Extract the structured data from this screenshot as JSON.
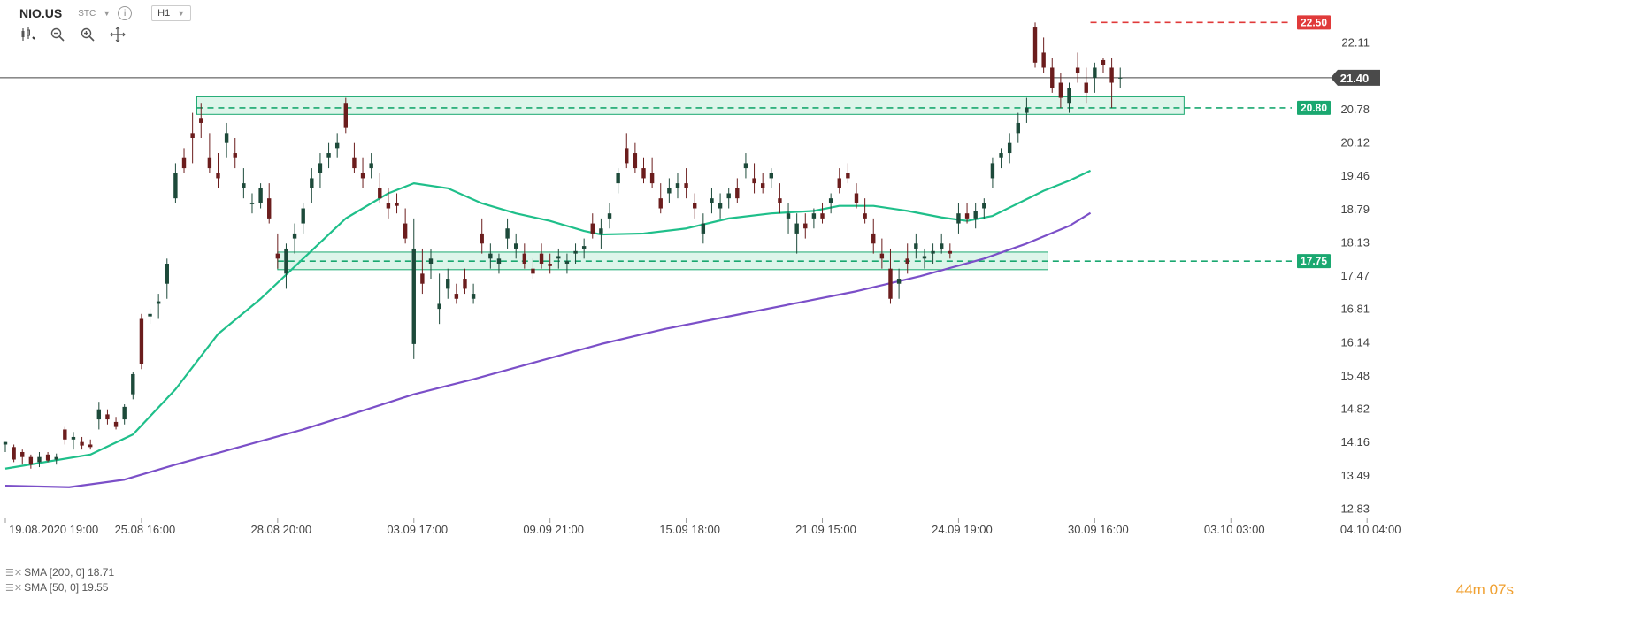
{
  "header": {
    "symbol": "NIO.US",
    "instrument_type": "STC",
    "timeframe": "H1"
  },
  "toolbar": {
    "tools": [
      "candlestick-icon",
      "zoom-out-icon",
      "zoom-in-icon",
      "move-icon"
    ]
  },
  "legend": [
    {
      "label": "SMA [200, 0] 18.71",
      "color": "#7b4fc8"
    },
    {
      "label": "SMA [50, 0] 19.55",
      "color": "#1fbf8a"
    }
  ],
  "timer": {
    "minutes": "44",
    "m": "m",
    "seconds": "07",
    "s": "s"
  },
  "colors": {
    "up": "#1d4a3a",
    "down": "#6b1d1d",
    "sma50": "#1fbf8a",
    "sma200": "#7b4fc8",
    "resistance": "#e03a3a",
    "support": "#1aa870",
    "zone_fill": "#d7f3e6",
    "last": "#444444"
  },
  "chart_data": {
    "type": "candlestick",
    "y_ticks": [
      "22.11",
      "20.78",
      "20.12",
      "19.46",
      "18.79",
      "18.13",
      "17.47",
      "16.81",
      "16.14",
      "15.48",
      "14.82",
      "14.16",
      "13.49",
      "12.83"
    ],
    "y_tick_values": [
      22.11,
      20.78,
      20.12,
      19.46,
      18.79,
      18.13,
      17.47,
      16.81,
      16.14,
      15.48,
      14.82,
      14.16,
      13.49,
      12.83
    ],
    "ylim": [
      12.7,
      22.7
    ],
    "x_ticks": [
      "19.08.2020 19:00",
      "25.08 16:00",
      "28.08 20:00",
      "03.09 17:00",
      "09.09 21:00",
      "15.09 18:00",
      "21.09 15:00",
      "24.09 19:00",
      "30.09 16:00",
      "03.10 03:00",
      "04.10 04:00"
    ],
    "x_tick_index": [
      0,
      32,
      64,
      96,
      128,
      160,
      192,
      224,
      256,
      288,
      320
    ],
    "bar_count": 330,
    "levels": [
      {
        "label": "22.50",
        "value": 22.5,
        "color": "#e03a3a",
        "from_index": 255
      },
      {
        "label": "20.80",
        "value": 20.8,
        "color": "#1aa870",
        "from_index": 45
      },
      {
        "label": "17.75",
        "value": 17.75,
        "color": "#1aa870",
        "from_index": 64
      }
    ],
    "zones": [
      {
        "from_index": 45,
        "to_index": 277,
        "low": 20.67,
        "high": 21.02
      },
      {
        "from_index": 64,
        "to_index": 245,
        "low": 17.58,
        "high": 17.93
      }
    ],
    "last_price": {
      "label": "21.40",
      "value": 21.4
    },
    "candles": [
      [
        0,
        14.1,
        14.15,
        13.95,
        14.15
      ],
      [
        2,
        14.05,
        14.1,
        13.75,
        13.8
      ],
      [
        4,
        13.95,
        14.0,
        13.7,
        13.85
      ],
      [
        6,
        13.85,
        13.9,
        13.62,
        13.7
      ],
      [
        8,
        13.75,
        13.95,
        13.65,
        13.85
      ],
      [
        10,
        13.9,
        13.95,
        13.75,
        13.78
      ],
      [
        12,
        13.8,
        13.92,
        13.7,
        13.85
      ],
      [
        14,
        14.4,
        14.45,
        14.1,
        14.2
      ],
      [
        16,
        14.2,
        14.35,
        14.0,
        14.25
      ],
      [
        18,
        14.15,
        14.25,
        14.0,
        14.08
      ],
      [
        20,
        14.1,
        14.2,
        14.0,
        14.05
      ],
      [
        22,
        14.6,
        14.95,
        14.4,
        14.8
      ],
      [
        24,
        14.7,
        14.8,
        14.5,
        14.6
      ],
      [
        26,
        14.55,
        14.65,
        14.4,
        14.45
      ],
      [
        28,
        14.6,
        14.9,
        14.5,
        14.85
      ],
      [
        30,
        15.1,
        15.55,
        15.0,
        15.5
      ],
      [
        32,
        16.6,
        16.7,
        15.6,
        15.7
      ],
      [
        34,
        16.65,
        16.8,
        16.5,
        16.7
      ],
      [
        36,
        16.9,
        17.1,
        16.6,
        16.95
      ],
      [
        38,
        17.3,
        17.8,
        17.0,
        17.7
      ],
      [
        40,
        19.0,
        19.7,
        18.9,
        19.5
      ],
      [
        42,
        19.8,
        20.0,
        19.5,
        19.6
      ],
      [
        44,
        20.3,
        20.7,
        19.7,
        20.2
      ],
      [
        46,
        20.6,
        20.9,
        20.2,
        20.5
      ],
      [
        48,
        19.8,
        20.3,
        19.5,
        19.6
      ],
      [
        50,
        19.5,
        19.9,
        19.2,
        19.4
      ],
      [
        52,
        20.1,
        20.5,
        19.8,
        20.3
      ],
      [
        54,
        19.9,
        20.2,
        19.6,
        19.8
      ],
      [
        56,
        19.2,
        19.6,
        19.0,
        19.3
      ],
      [
        58,
        18.9,
        19.1,
        18.7,
        18.9
      ],
      [
        60,
        18.9,
        19.3,
        18.8,
        19.2
      ],
      [
        62,
        19.0,
        19.3,
        18.5,
        18.6
      ],
      [
        64,
        17.9,
        18.3,
        17.6,
        17.8
      ],
      [
        66,
        17.5,
        18.1,
        17.2,
        18.0
      ],
      [
        68,
        18.2,
        18.5,
        17.9,
        18.3
      ],
      [
        70,
        18.5,
        18.9,
        18.3,
        18.8
      ],
      [
        72,
        19.2,
        19.6,
        18.9,
        19.4
      ],
      [
        74,
        19.5,
        19.9,
        19.2,
        19.7
      ],
      [
        76,
        19.8,
        20.1,
        19.6,
        19.9
      ],
      [
        78,
        20.0,
        20.3,
        19.8,
        20.1
      ],
      [
        80,
        20.9,
        21.0,
        20.3,
        20.4
      ],
      [
        82,
        19.8,
        20.1,
        19.5,
        19.6
      ],
      [
        84,
        19.5,
        19.8,
        19.2,
        19.4
      ],
      [
        86,
        19.6,
        19.9,
        19.4,
        19.7
      ],
      [
        88,
        19.2,
        19.5,
        18.9,
        19.0
      ],
      [
        90,
        18.9,
        19.2,
        18.6,
        18.8
      ],
      [
        92,
        18.9,
        19.1,
        18.7,
        18.85
      ],
      [
        94,
        18.5,
        18.8,
        18.1,
        18.2
      ],
      [
        96,
        16.1,
        18.6,
        15.8,
        18.0
      ],
      [
        98,
        17.5,
        18.0,
        17.1,
        17.3
      ],
      [
        100,
        17.7,
        18.0,
        17.4,
        17.8
      ],
      [
        102,
        16.8,
        17.5,
        16.5,
        16.9
      ],
      [
        104,
        17.2,
        17.6,
        17.0,
        17.4
      ],
      [
        106,
        17.1,
        17.3,
        16.9,
        17.0
      ],
      [
        108,
        17.4,
        17.6,
        17.1,
        17.2
      ],
      [
        110,
        17.0,
        17.3,
        16.9,
        17.1
      ],
      [
        112,
        18.3,
        18.6,
        17.9,
        18.1
      ],
      [
        114,
        17.8,
        18.1,
        17.6,
        17.9
      ],
      [
        116,
        17.7,
        17.9,
        17.5,
        17.8
      ],
      [
        118,
        18.2,
        18.6,
        18.0,
        18.4
      ],
      [
        120,
        18.0,
        18.3,
        17.8,
        18.1
      ],
      [
        122,
        17.9,
        18.1,
        17.6,
        17.7
      ],
      [
        124,
        17.6,
        17.8,
        17.4,
        17.5
      ],
      [
        126,
        17.9,
        18.1,
        17.6,
        17.7
      ],
      [
        128,
        17.7,
        17.9,
        17.5,
        17.65
      ],
      [
        130,
        17.8,
        18.0,
        17.6,
        17.85
      ],
      [
        132,
        17.7,
        17.9,
        17.5,
        17.75
      ],
      [
        134,
        17.9,
        18.1,
        17.7,
        17.95
      ],
      [
        136,
        18.0,
        18.2,
        17.8,
        18.05
      ],
      [
        138,
        18.5,
        18.7,
        18.2,
        18.3
      ],
      [
        140,
        18.3,
        18.6,
        18.0,
        18.4
      ],
      [
        142,
        18.6,
        18.9,
        18.4,
        18.7
      ],
      [
        144,
        19.3,
        19.6,
        19.1,
        19.5
      ],
      [
        146,
        20.0,
        20.3,
        19.6,
        19.7
      ],
      [
        148,
        19.9,
        20.1,
        19.5,
        19.6
      ],
      [
        150,
        19.6,
        19.8,
        19.3,
        19.4
      ],
      [
        152,
        19.5,
        19.8,
        19.2,
        19.3
      ],
      [
        154,
        19.0,
        19.3,
        18.7,
        18.8
      ],
      [
        156,
        19.1,
        19.4,
        18.9,
        19.2
      ],
      [
        158,
        19.2,
        19.5,
        19.0,
        19.3
      ],
      [
        160,
        19.3,
        19.6,
        19.0,
        19.2
      ],
      [
        162,
        18.9,
        19.1,
        18.6,
        18.8
      ],
      [
        164,
        18.3,
        18.7,
        18.1,
        18.5
      ],
      [
        166,
        18.9,
        19.2,
        18.7,
        19.0
      ],
      [
        168,
        18.8,
        19.1,
        18.6,
        18.9
      ],
      [
        170,
        19.0,
        19.2,
        18.8,
        19.1
      ],
      [
        172,
        19.2,
        19.4,
        18.9,
        19.0
      ],
      [
        174,
        19.6,
        19.9,
        19.4,
        19.7
      ],
      [
        176,
        19.4,
        19.7,
        19.1,
        19.3
      ],
      [
        178,
        19.3,
        19.5,
        19.1,
        19.2
      ],
      [
        180,
        19.4,
        19.6,
        19.2,
        19.5
      ],
      [
        182,
        19.0,
        19.3,
        18.7,
        18.9
      ],
      [
        184,
        18.6,
        18.9,
        18.3,
        18.7
      ],
      [
        186,
        18.3,
        18.7,
        17.9,
        18.5
      ],
      [
        188,
        18.5,
        18.7,
        18.2,
        18.4
      ],
      [
        190,
        18.6,
        18.8,
        18.4,
        18.7
      ],
      [
        192,
        18.7,
        18.9,
        18.5,
        18.6
      ],
      [
        194,
        18.9,
        19.1,
        18.7,
        19.0
      ],
      [
        196,
        19.4,
        19.6,
        19.1,
        19.2
      ],
      [
        198,
        19.5,
        19.7,
        19.3,
        19.4
      ],
      [
        200,
        19.1,
        19.3,
        18.8,
        18.9
      ],
      [
        202,
        18.7,
        19.0,
        18.5,
        18.6
      ],
      [
        204,
        18.3,
        18.6,
        17.9,
        18.1
      ],
      [
        206,
        17.9,
        18.2,
        17.6,
        17.8
      ],
      [
        208,
        17.6,
        18.0,
        16.9,
        17.0
      ],
      [
        210,
        17.3,
        17.6,
        17.0,
        17.4
      ],
      [
        212,
        17.8,
        18.1,
        17.5,
        17.7
      ],
      [
        214,
        18.0,
        18.3,
        17.8,
        18.1
      ],
      [
        216,
        17.8,
        18.0,
        17.6,
        17.85
      ],
      [
        218,
        17.9,
        18.1,
        17.7,
        17.95
      ],
      [
        220,
        18.0,
        18.3,
        17.9,
        18.1
      ],
      [
        222,
        17.95,
        18.1,
        17.8,
        17.9
      ],
      [
        224,
        18.5,
        18.9,
        18.3,
        18.7
      ],
      [
        226,
        18.7,
        18.9,
        18.5,
        18.6
      ],
      [
        228,
        18.6,
        18.9,
        18.4,
        18.75
      ],
      [
        230,
        18.8,
        19.0,
        18.6,
        18.9
      ],
      [
        232,
        19.4,
        19.8,
        19.2,
        19.7
      ],
      [
        234,
        19.8,
        20.0,
        19.6,
        19.9
      ],
      [
        236,
        19.9,
        20.3,
        19.7,
        20.1
      ],
      [
        238,
        20.3,
        20.7,
        20.1,
        20.5
      ],
      [
        240,
        20.7,
        21.0,
        20.5,
        20.8
      ],
      [
        242,
        22.4,
        22.5,
        21.6,
        21.7
      ],
      [
        244,
        21.9,
        22.2,
        21.5,
        21.6
      ],
      [
        246,
        21.6,
        21.8,
        21.1,
        21.2
      ],
      [
        248,
        21.3,
        21.5,
        20.8,
        21.0
      ],
      [
        250,
        20.9,
        21.3,
        20.7,
        21.2
      ],
      [
        252,
        21.6,
        21.9,
        21.3,
        21.5
      ],
      [
        254,
        21.3,
        21.6,
        20.9,
        21.1
      ],
      [
        256,
        21.4,
        21.7,
        21.1,
        21.6
      ],
      [
        258,
        21.75,
        21.8,
        21.5,
        21.65
      ],
      [
        260,
        21.6,
        21.8,
        20.8,
        21.3
      ],
      [
        262,
        21.4,
        21.6,
        21.2,
        21.4
      ]
    ],
    "sma50": [
      [
        0,
        13.62
      ],
      [
        20,
        13.9
      ],
      [
        30,
        14.3
      ],
      [
        40,
        15.2
      ],
      [
        50,
        16.3
      ],
      [
        60,
        17.0
      ],
      [
        70,
        17.8
      ],
      [
        80,
        18.6
      ],
      [
        90,
        19.1
      ],
      [
        96,
        19.3
      ],
      [
        104,
        19.2
      ],
      [
        112,
        18.9
      ],
      [
        120,
        18.7
      ],
      [
        128,
        18.55
      ],
      [
        136,
        18.35
      ],
      [
        140,
        18.28
      ],
      [
        150,
        18.3
      ],
      [
        160,
        18.4
      ],
      [
        170,
        18.6
      ],
      [
        180,
        18.7
      ],
      [
        190,
        18.75
      ],
      [
        196,
        18.85
      ],
      [
        204,
        18.85
      ],
      [
        212,
        18.75
      ],
      [
        220,
        18.62
      ],
      [
        226,
        18.55
      ],
      [
        232,
        18.65
      ],
      [
        238,
        18.9
      ],
      [
        244,
        19.15
      ],
      [
        250,
        19.35
      ],
      [
        255,
        19.55
      ]
    ],
    "sma200": [
      [
        0,
        13.28
      ],
      [
        15,
        13.25
      ],
      [
        28,
        13.4
      ],
      [
        40,
        13.7
      ],
      [
        55,
        14.05
      ],
      [
        70,
        14.4
      ],
      [
        85,
        14.8
      ],
      [
        96,
        15.1
      ],
      [
        110,
        15.4
      ],
      [
        125,
        15.75
      ],
      [
        140,
        16.1
      ],
      [
        155,
        16.4
      ],
      [
        170,
        16.65
      ],
      [
        185,
        16.9
      ],
      [
        200,
        17.15
      ],
      [
        215,
        17.45
      ],
      [
        230,
        17.8
      ],
      [
        240,
        18.1
      ],
      [
        250,
        18.45
      ],
      [
        255,
        18.71
      ]
    ]
  }
}
